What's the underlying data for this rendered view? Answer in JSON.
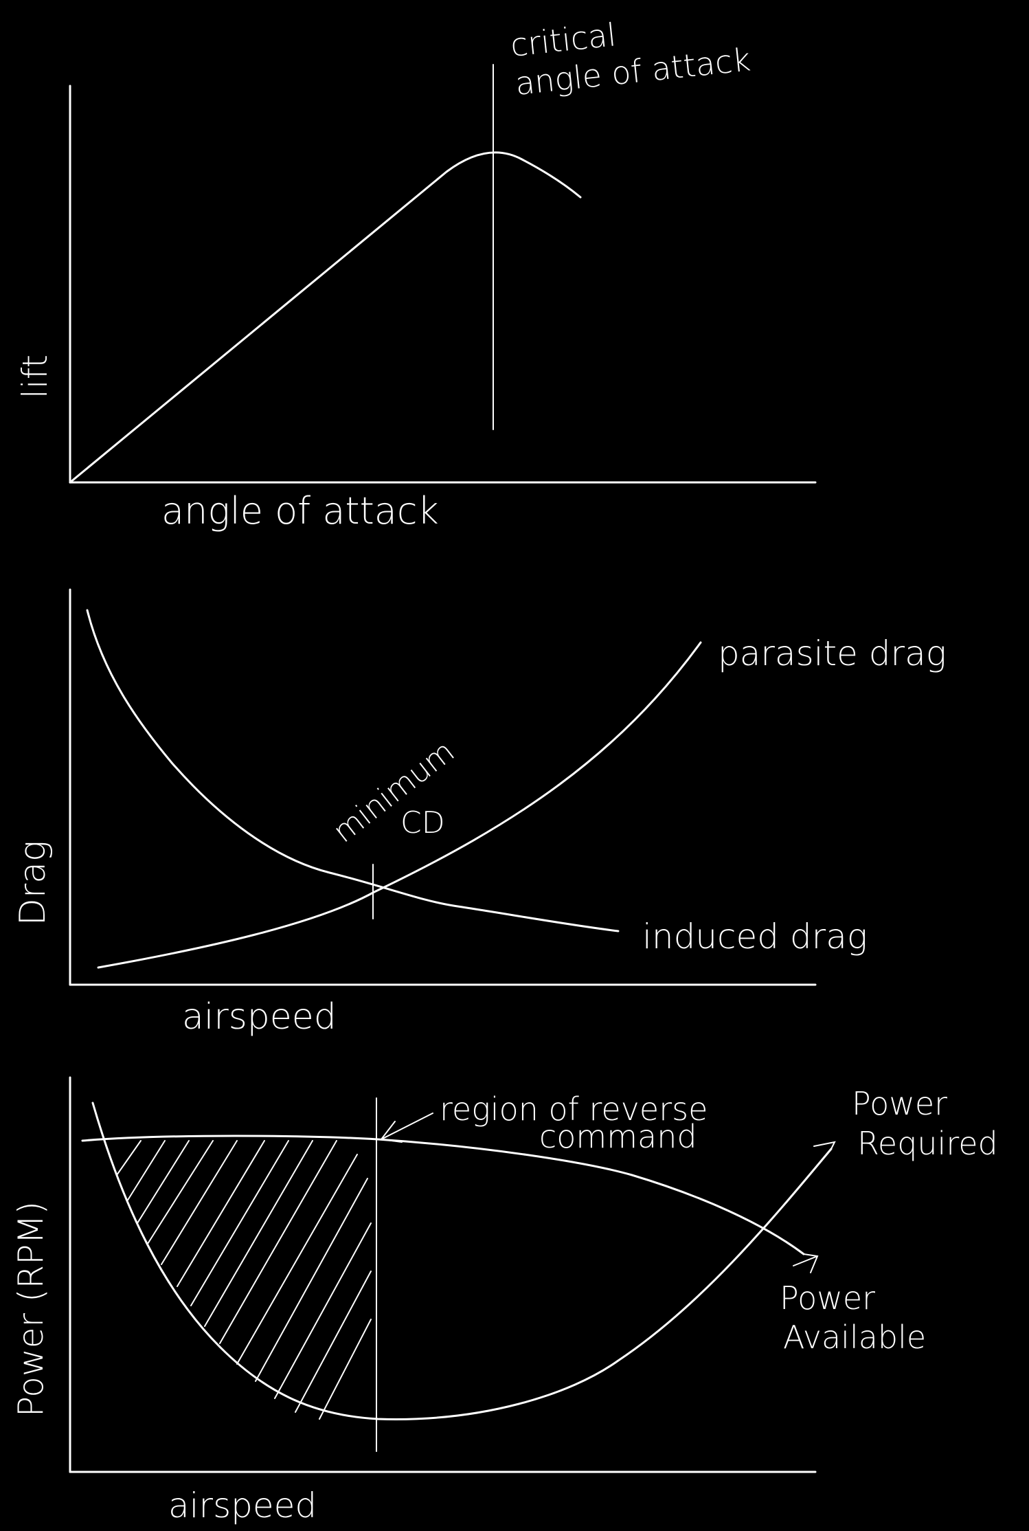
{
  "colors": {
    "background": "#000000",
    "ink": "#ffffff"
  },
  "lift_chart": {
    "y_axis_label": "lift",
    "x_axis_label": "angle of attack",
    "annotation_line1": "critical",
    "annotation_line2": "angle of attack"
  },
  "drag_chart": {
    "y_axis_label": "Drag",
    "x_axis_label": "airspeed",
    "parasite_label": "parasite drag",
    "induced_label": "induced drag",
    "minimum_line1": "minimum",
    "minimum_line2": "CD"
  },
  "power_chart": {
    "y_axis_label": "Power (RPM)",
    "x_axis_label": "airspeed",
    "region_line1": "region of reverse",
    "region_line2": "command",
    "required_line1": "Power",
    "required_line2": "Required",
    "available_line1": "Power",
    "available_line2": "Available"
  }
}
